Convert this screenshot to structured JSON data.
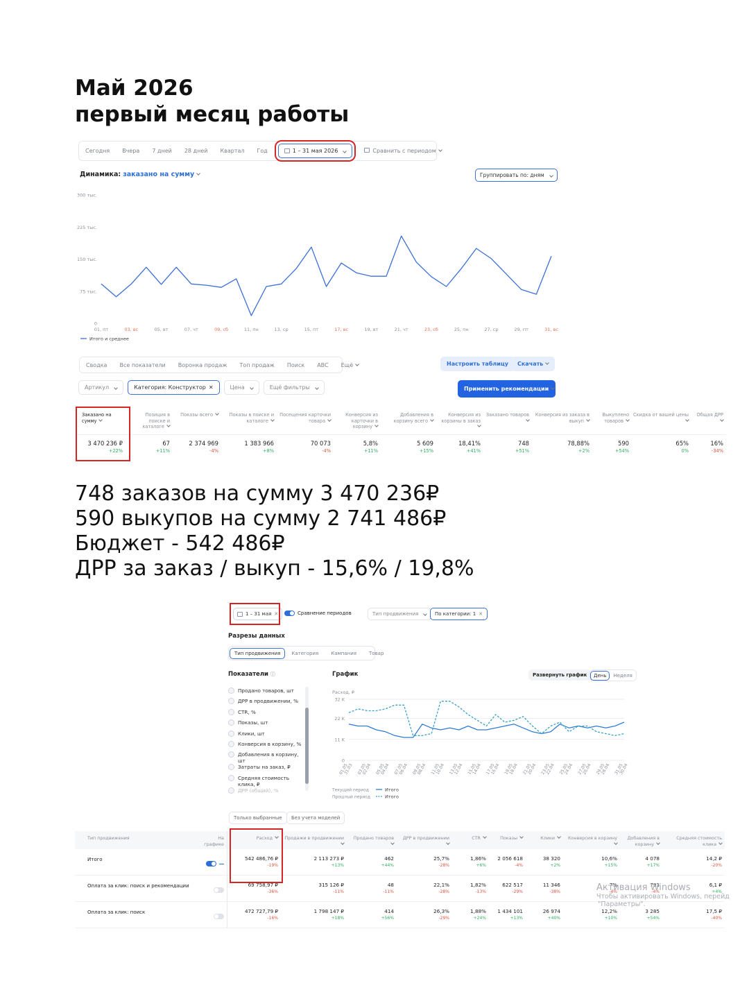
{
  "header": {
    "title_lines": [
      "Май 2026",
      "первый месяц работы"
    ]
  },
  "report": {
    "period_tabs": [
      "Сегодня",
      "Вчера",
      "7 дней",
      "28 дней",
      "Квартал",
      "Год"
    ],
    "date_range": "1 – 31 мая 2026",
    "compare": "Сравнить с периодом",
    "dynamics_label": "Динамика:",
    "dynamics_metric": "заказано на сумму",
    "group_by": "Группировать по: дням",
    "tabs": [
      "Сводка",
      "Все показатели",
      "Воронка продаж",
      "Топ продаж",
      "Поиск",
      "ABC",
      "Ещё"
    ],
    "buttons": [
      "Настроить таблицу",
      "Скачать"
    ],
    "filters": [
      "Артикул",
      "Категория: Конструктор",
      "Цена",
      "Ещё фильтры"
    ],
    "apply": "Применить рекомендации",
    "table": {
      "headers": [
        "Заказано на сумму",
        "Позиция в поиске и каталоге",
        "Показы всего",
        "Показы в поиске и каталоге",
        "Посещения карточки товара",
        "Конверсия из карточки в корзину",
        "Добавления в корзину всего",
        "Конверсия из корзины в заказ",
        "Заказано товаров",
        "Конверсия из заказа в выкуп",
        "Выкуплено товаров",
        "Скидка от вашей цены",
        "Общая ДРР"
      ],
      "rows": [
        [
          {
            "value": "3 470 236 ₽",
            "change": "+22%"
          },
          {
            "value": "67",
            "change": "+11%"
          },
          {
            "value": "2 374 969",
            "change": "-4%"
          },
          {
            "value": "1 383 966",
            "change": "+8%"
          },
          {
            "value": "70 073",
            "change": "-4%"
          },
          {
            "value": "5,8%",
            "change": "+11%"
          },
          {
            "value": "5 609",
            "change": "+15%"
          },
          {
            "value": "18,41%",
            "change": "+41%"
          },
          {
            "value": "748",
            "change": "+51%"
          },
          {
            "value": "78,88%",
            "change": "+2%"
          },
          {
            "value": "590",
            "change": "+54%"
          },
          {
            "value": "65%",
            "change": "0%"
          },
          {
            "value": "16%",
            "change": "-34%"
          }
        ]
      ]
    }
  },
  "summary": {
    "lines": [
      "748 заказов на сумму 3 470 236₽",
      "590 выкупов на сумму 2 741 486₽",
      "Бюджет - 542 486₽",
      "ДРР за заказ / выкуп - 15,6% / 19,8%"
    ]
  },
  "ads": {
    "date_chip": "1 – 31 мая",
    "compare_toggle": "Сравнение периодов",
    "promo_type": "Тип продвижения",
    "category_filter": "По категории: 1",
    "slices_title": "Разрезы данных",
    "slices": [
      "Тип продвижения",
      "Категория",
      "Кампания",
      "Товар"
    ],
    "indicators_title": "Показатели",
    "indicators": [
      "Продано товаров, шт",
      "ДРР в продвижении, %",
      "CTR, %",
      "Показы, шт",
      "Клики, шт",
      "Конверсия в корзину, %",
      "Добавления в корзину, шт",
      "Затраты на заказ, ₽",
      "Средняя стоимость клика, ₽",
      "ДРР (общий), %"
    ],
    "chart_title": "График",
    "expand": "Развернуть график",
    "granularity": [
      "День",
      "Неделя"
    ],
    "buttons": [
      "Только выбранные",
      "Без учета моделей"
    ],
    "table": {
      "headers": [
        "Тип продвижения",
        "На графике",
        "Расход",
        "Продажи в продвижении",
        "Продано товаров",
        "ДРР в продвижении",
        "CTR",
        "Показы",
        "Клики",
        "Конверсия в корзину",
        "Добавления в корзину",
        "Средняя стоимость клика"
      ],
      "rows": [
        {
          "name": "Итого",
          "on_chart": true,
          "cells": [
            {
              "value": "542 486,76 ₽",
              "change": "-19%"
            },
            {
              "value": "2 113 273 ₽",
              "change": "+13%"
            },
            {
              "value": "462",
              "change": "+44%"
            },
            {
              "value": "25,7%",
              "change": "-28%"
            },
            {
              "value": "1,86%",
              "change": "+6%"
            },
            {
              "value": "2 056 618",
              "change": "-4%"
            },
            {
              "value": "38 320",
              "change": "+2%"
            },
            {
              "value": "10,6%",
              "change": "+15%"
            },
            {
              "value": "4 078",
              "change": "+17%"
            },
            {
              "value": "14,2 ₽",
              "change": "-20%"
            }
          ]
        },
        {
          "name": "Оплата за клик: поиск и рекомендации",
          "on_chart": false,
          "cells": [
            {
              "value": "69 758,97 ₽",
              "change": "-36%"
            },
            {
              "value": "315 126 ₽",
              "change": "-11%"
            },
            {
              "value": "48",
              "change": "-11%"
            },
            {
              "value": "22,1%",
              "change": "-28%"
            },
            {
              "value": "1,82%",
              "change": "-13%"
            },
            {
              "value": "622 517",
              "change": "-29%"
            },
            {
              "value": "11 346",
              "change": "-38%"
            },
            {
              "value": "7%",
              "change": "-4%"
            },
            {
              "value": "793",
              "change": "-4%"
            },
            {
              "value": "6,1 ₽",
              "change": "+4%"
            }
          ]
        },
        {
          "name": "Оплата за клик: поиск",
          "on_chart": false,
          "cells": [
            {
              "value": "472 727,79 ₽",
              "change": "-16%"
            },
            {
              "value": "1 798 147 ₽",
              "change": "+18%"
            },
            {
              "value": "414",
              "change": "+56%"
            },
            {
              "value": "26,3%",
              "change": "-29%"
            },
            {
              "value": "1,88%",
              "change": "+24%"
            },
            {
              "value": "1 434 101",
              "change": "+13%"
            },
            {
              "value": "26 974",
              "change": "+40%"
            },
            {
              "value": "12,2%",
              "change": "+10%"
            },
            {
              "value": "3 285",
              "change": "+54%"
            },
            {
              "value": "17,5 ₽",
              "change": "-40%"
            }
          ]
        }
      ]
    }
  },
  "watermark": [
    "Активация Windows",
    "Чтобы активировать Windows, перейд",
    "\"Параметры\"."
  ],
  "chart_data": [
    {
      "type": "line",
      "categories": [
        "01, пт",
        null,
        "03, вс",
        null,
        "05, вт",
        null,
        "07, чт",
        null,
        "09, сб",
        null,
        "11, пн",
        null,
        "13, ср",
        null,
        "15, пт",
        null,
        "17, вс",
        null,
        "19, вт",
        null,
        "21, чт",
        null,
        "23, сб",
        null,
        "25, пн",
        null,
        "27, ср",
        null,
        "29, пт",
        null,
        "31, вс"
      ],
      "label_colors": [
        "#8a8f99",
        "#e0735c",
        "#e0735c",
        "#8a8f99",
        "#8a8f99",
        "#8a8f99",
        "#8a8f99",
        "#8a8f99",
        "#e0735c",
        "#e0735c",
        "#8a8f99",
        "#8a8f99",
        "#8a8f99",
        "#8a8f99",
        "#8a8f99",
        "#e0735c",
        "#e0735c",
        "#8a8f99",
        "#8a8f99",
        "#8a8f99",
        "#8a8f99",
        "#8a8f99",
        "#e0735c",
        "#e0735c",
        "#8a8f99",
        "#8a8f99",
        "#8a8f99",
        "#8a8f99",
        "#8a8f99",
        "#e0735c",
        "#e0735c"
      ],
      "series": [
        {
          "name": "Итого и среднее",
          "color": "#3a6fd8",
          "values": [
            92000,
            62000,
            92000,
            131000,
            91000,
            131000,
            92000,
            89000,
            84000,
            104000,
            18000,
            86000,
            92000,
            128000,
            178000,
            86000,
            141000,
            118000,
            110000,
            110000,
            204000,
            143000,
            109000,
            86000,
            128000,
            175000,
            151000,
            115000,
            79000,
            68000,
            157000
          ]
        }
      ],
      "ylim": [
        0,
        300000
      ],
      "yticks": [
        0,
        {
          "value": 75000,
          "label": "75 тыс."
        },
        {
          "value": 150000,
          "label": "150 тыс."
        },
        {
          "value": 225000,
          "label": "225 тыс."
        },
        {
          "value": 300000,
          "label": "300 тыс."
        }
      ],
      "grid": false
    },
    {
      "type": "line",
      "y_label": "Расход, ₽",
      "categories": [
        "01.05",
        null,
        "03.05",
        null,
        "05.05",
        null,
        "07.05",
        null,
        "09.05",
        null,
        "11.05",
        null,
        "13.05",
        null,
        "15.05",
        null,
        "17.05",
        null,
        "19.05",
        null,
        "21.05",
        null,
        "23.05",
        null,
        "25.05",
        null,
        "27.05",
        null,
        "29.05",
        null,
        "31.05"
      ],
      "categories_previous": [
        "31.03",
        null,
        "02.04",
        null,
        "04.04",
        null,
        "06.04",
        null,
        "08.04",
        null,
        "10.04",
        null,
        "12.04",
        null,
        "14.04",
        null,
        "16.04",
        null,
        "18.04",
        null,
        "20.04",
        null,
        "22.04",
        null,
        "24.04",
        null,
        "26.04",
        null,
        "28.04",
        null,
        "30.04"
      ],
      "series": [
        {
          "name": "Итого",
          "period": "Текущий период",
          "color": "#2e7bd3",
          "dashed": false,
          "values": [
            19000,
            18000,
            18000,
            16000,
            15000,
            13000,
            12000,
            12000,
            19000,
            17000,
            16000,
            17000,
            16000,
            18000,
            16000,
            16000,
            17000,
            18000,
            19000,
            17000,
            15000,
            14000,
            15000,
            19000,
            17000,
            18000,
            17000,
            18000,
            17000,
            18000,
            20000
          ]
        },
        {
          "name": "Итого",
          "period": "Прошлый период",
          "color": "#3aa0c8",
          "dashed": true,
          "values": [
            25000,
            27000,
            26000,
            26000,
            27000,
            29000,
            29000,
            13000,
            13000,
            14000,
            31000,
            31000,
            28000,
            24000,
            21000,
            18000,
            24000,
            20000,
            21000,
            23000,
            18000,
            14000,
            18000,
            20000,
            15000,
            18000,
            18000,
            15000,
            14000,
            13000,
            14000
          ]
        }
      ],
      "ylim": [
        0,
        32000
      ],
      "yticks": [
        0,
        {
          "value": 11000,
          "label": "11 K"
        },
        {
          "value": 22000,
          "label": "22 K"
        },
        {
          "value": 32000,
          "label": "32 K"
        }
      ],
      "grid": true
    }
  ]
}
